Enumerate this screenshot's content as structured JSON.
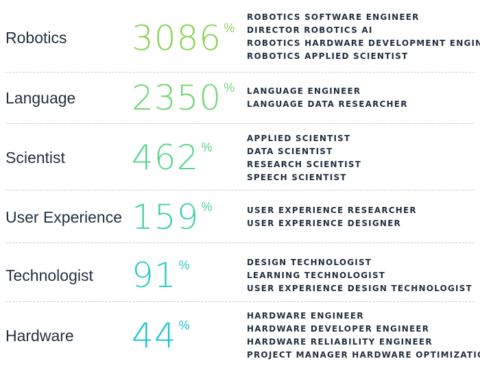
{
  "colors": {
    "text": "#232f3e",
    "divider": "#c9c9c9"
  },
  "rows": [
    {
      "category": "Robotics",
      "value": "3086",
      "unit": "%",
      "color": "#8bd25a",
      "roles": [
        "ROBOTICS SOFTWARE ENGINEER",
        "DIRECTOR ROBOTICS AI",
        "ROBOTICS HARDWARE DEVELOPMENT ENGINEER",
        "ROBOTICS APPLIED SCIENTIST"
      ]
    },
    {
      "category": "Language",
      "value": "2350",
      "unit": "%",
      "color": "#76d576",
      "roles": [
        "LANGUAGE ENGINEER",
        "LANGUAGE DATA RESEARCHER"
      ]
    },
    {
      "category": "Scientist",
      "value": "462",
      "unit": "%",
      "color": "#5cd48e",
      "roles": [
        "APPLIED SCIENTIST",
        "DATA SCIENTIST",
        "RESEARCH SCIENTIST",
        "SPEECH SCIENTIST"
      ]
    },
    {
      "category": "User Experience",
      "value": "159",
      "unit": "%",
      "color": "#43d1a6",
      "roles": [
        "USER EXPERIENCE RESEARCHER",
        "USER EXPERIENCE DESIGNER"
      ]
    },
    {
      "category": "Technologist",
      "value": "91",
      "unit": "%",
      "color": "#2ccbc0",
      "roles": [
        "DESIGN TECHNOLOGIST",
        "LEARNING TECHNOLOGIST",
        "USER EXPERIENCE DESIGN TECHNOLOGIST"
      ]
    },
    {
      "category": "Hardware",
      "value": "44",
      "unit": "%",
      "color": "#1ec4d4",
      "roles": [
        "HARDWARE ENGINEER",
        "HARDWARE DEVELOPER ENGINEER",
        "HARDWARE RELIABILITY ENGINEER",
        "PROJECT MANAGER HARDWARE OPTIMIZATION"
      ]
    }
  ]
}
